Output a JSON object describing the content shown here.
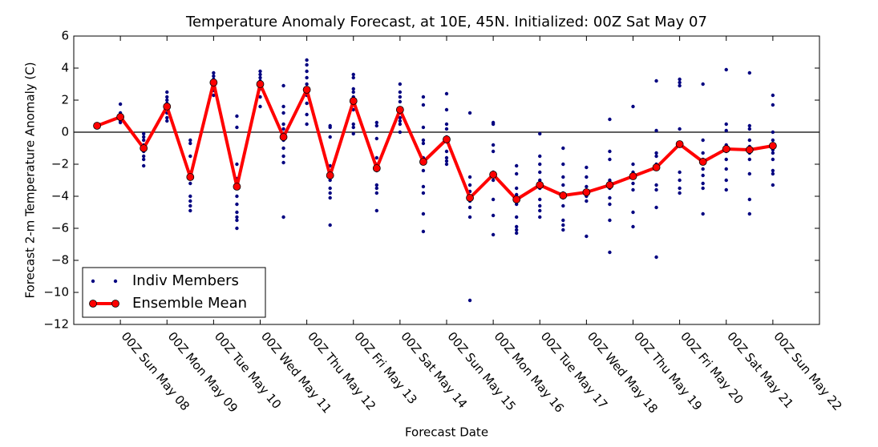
{
  "chart_data": {
    "type": "line",
    "title": "Temperature Anomaly Forecast, at 10E, 45N.  Initialized: 00Z Sat May 07",
    "xlabel": "Forecast Date",
    "ylabel": "Forecast 2-m Temperature Anomaly (C)",
    "categories": [
      null,
      "00Z Sun May 08",
      null,
      "00Z Mon May 09",
      null,
      "00Z Tue May 10",
      null,
      "00Z Wed May 11",
      null,
      "00Z Thu May 12",
      null,
      "00Z Fri May 13",
      null,
      "00Z Sat May 14",
      null,
      "00Z Sun May 15",
      null,
      "00Z Mon May 16",
      null,
      "00Z Tue May 17",
      null,
      "00Z Wed May 18",
      null,
      "00Z Thu May 19",
      null,
      "00Z Fri May 20",
      null,
      "00Z Sat May 21",
      null,
      "00Z Sun May 22"
    ],
    "ylim": [
      -12,
      6
    ],
    "yticks": [
      {
        "value": -12,
        "label": "−12"
      },
      {
        "value": -10,
        "label": "−10"
      },
      {
        "value": -8,
        "label": "−8"
      },
      {
        "value": -6,
        "label": "−6"
      },
      {
        "value": -4,
        "label": "−4"
      },
      {
        "value": -2,
        "label": "−2"
      },
      0,
      2,
      4,
      6
    ],
    "hline": 0,
    "legend": "lower left",
    "series": [
      {
        "name": "Indiv Members",
        "color": "#000080",
        "values": [
          [
            0.3,
            0.4,
            0.45,
            0.5
          ],
          [
            1.75,
            1.2,
            1.05,
            0.9,
            0.8,
            0.7,
            0.6
          ],
          [
            -0.1,
            -0.3,
            -0.5,
            -0.8,
            -1.2,
            -1.5,
            -1.7,
            -2.1
          ],
          [
            2.5,
            2.2,
            2.0,
            1.8,
            1.5,
            1.2,
            0.9,
            0.7
          ],
          [
            -0.5,
            -0.7,
            -1.5,
            -2.5,
            -3.2,
            -4.0,
            -4.3,
            -4.6,
            -4.9
          ],
          [
            3.7,
            3.5,
            3.3,
            3.1,
            2.9,
            2.6,
            2.3
          ],
          [
            1.0,
            0.3,
            -2.0,
            -2.9,
            -3.5,
            -4.0,
            -4.5,
            -5.0,
            -5.3,
            -5.5,
            -6.0
          ],
          [
            3.8,
            3.6,
            3.4,
            3.2,
            3.0,
            2.7,
            2.2,
            1.6
          ],
          [
            2.9,
            1.6,
            1.2,
            0.5,
            0.2,
            -0.2,
            -0.5,
            -1.0,
            -1.5,
            -1.9,
            -5.3
          ],
          [
            4.5,
            4.2,
            3.8,
            3.4,
            3.0,
            2.7,
            2.3,
            1.8,
            1.1,
            0.5
          ],
          [
            0.4,
            0.3,
            -0.3,
            -2.1,
            -2.5,
            -3.0,
            -3.5,
            -3.8,
            -4.1,
            -5.8
          ],
          [
            3.6,
            3.4,
            2.7,
            2.5,
            2.2,
            1.8,
            1.4,
            0.5,
            0.3,
            -0.1
          ],
          [
            0.6,
            0.4,
            -0.4,
            -1.6,
            -2.0,
            -2.4,
            -3.3,
            -3.5,
            -3.8,
            -4.9
          ],
          [
            3.0,
            2.5,
            2.2,
            1.9,
            1.5,
            1.2,
            0.9,
            0.7,
            0.5,
            0.0
          ],
          [
            2.2,
            1.7,
            0.3,
            -0.5,
            -0.7,
            -1.6,
            -2.4,
            -3.4,
            -3.8,
            -5.1,
            -6.2
          ],
          [
            2.4,
            1.4,
            0.5,
            0.2,
            -0.3,
            -0.6,
            -1.2,
            -1.6,
            -1.8,
            -2.0
          ],
          [
            1.2,
            -2.8,
            -3.3,
            -3.7,
            -4.1,
            -4.3,
            -4.7,
            -5.3,
            -10.5
          ],
          [
            0.6,
            0.5,
            -0.8,
            -1.2,
            -2.5,
            -3.0,
            -4.2,
            -5.2,
            -6.4
          ],
          [
            -2.1,
            -2.6,
            -3.5,
            -3.9,
            -4.5,
            -5.3,
            -5.9,
            -6.1,
            -6.3
          ],
          [
            -0.1,
            -1.5,
            -2.0,
            -2.5,
            -3.0,
            -3.5,
            -4.2,
            -4.6,
            -4.9,
            -5.3
          ],
          [
            -1.0,
            -2.0,
            -2.8,
            -3.3,
            -3.8,
            -4.1,
            -4.6,
            -5.5,
            -5.8,
            -6.1
          ],
          [
            -2.2,
            -2.8,
            -3.4,
            -3.7,
            -4.0,
            -4.3,
            -6.5
          ],
          [
            0.8,
            -1.2,
            -1.7,
            -3.0,
            -3.5,
            -4.1,
            -4.5,
            -5.5,
            -7.5
          ],
          [
            1.6,
            -2.0,
            -2.5,
            -2.8,
            -3.2,
            -3.6,
            -5.0,
            -5.9
          ],
          [
            3.2,
            0.1,
            -1.3,
            -1.5,
            -2.0,
            -3.3,
            -3.6,
            -4.7,
            -7.8
          ],
          [
            3.3,
            3.1,
            2.9,
            0.2,
            -2.5,
            -3.0,
            -3.5,
            -3.8
          ],
          [
            3.0,
            -0.5,
            -1.3,
            -1.7,
            -2.3,
            -2.7,
            -3.2,
            -3.5,
            -5.1
          ],
          [
            3.9,
            0.5,
            0.1,
            -0.8,
            -1.2,
            -1.7,
            -2.3,
            -3.0,
            -3.6
          ],
          [
            3.7,
            0.4,
            0.2,
            -0.5,
            -0.9,
            -1.3,
            -1.7,
            -2.6,
            -4.2,
            -5.1
          ],
          [
            2.3,
            1.7,
            0.0,
            -0.5,
            -1.1,
            -1.3,
            -1.7,
            -2.4,
            -2.6,
            -3.3
          ]
        ]
      },
      {
        "name": "Ensemble Mean",
        "color": "#ff0000",
        "values": [
          0.4,
          0.95,
          -1.0,
          1.6,
          -2.8,
          3.1,
          -3.4,
          3.0,
          -0.3,
          2.65,
          -2.7,
          1.95,
          -2.25,
          1.4,
          -1.85,
          -0.45,
          -4.1,
          -2.65,
          -4.2,
          -3.3,
          -3.95,
          -3.75,
          -3.3,
          -2.75,
          -2.2,
          -0.75,
          -1.85,
          -1.05,
          -1.1,
          -0.85
        ]
      }
    ]
  }
}
